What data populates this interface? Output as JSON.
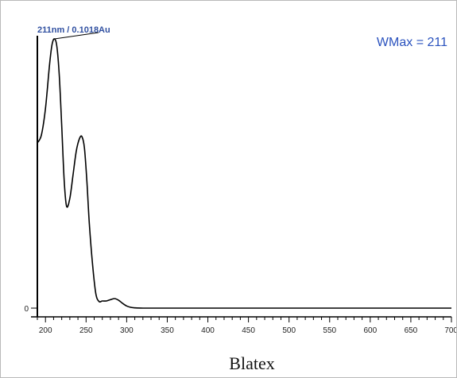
{
  "chart_data": {
    "type": "line",
    "title": "",
    "xlabel": "Blatex",
    "ylabel": "",
    "xlim": [
      190,
      700
    ],
    "ylim": [
      0,
      0.1018
    ],
    "x_ticks": [
      "200",
      "250",
      "300",
      "350",
      "400",
      "450",
      "500",
      "550",
      "600",
      "650",
      "700"
    ],
    "y_ticks": [
      "0"
    ],
    "series": [
      {
        "x": [
          190,
          195,
          200,
          205,
          208,
          211,
          214,
          217,
          220,
          223,
          226,
          230,
          234,
          238,
          242,
          245,
          248,
          251,
          254,
          258,
          262,
          266,
          270,
          275,
          280,
          285,
          290,
          295,
          300,
          305,
          310,
          320,
          350,
          400,
          450,
          500,
          550,
          600,
          650,
          700
        ],
        "y": [
          0.0625,
          0.0655,
          0.0755,
          0.092,
          0.0995,
          0.1018,
          0.099,
          0.088,
          0.069,
          0.0485,
          0.0385,
          0.0415,
          0.0505,
          0.0595,
          0.0642,
          0.0648,
          0.0605,
          0.048,
          0.032,
          0.0165,
          0.0055,
          0.0025,
          0.0027,
          0.0027,
          0.0032,
          0.0036,
          0.003,
          0.0018,
          0.0008,
          0.0003,
          0.0001,
          0,
          0,
          0,
          0,
          0,
          0,
          0,
          0,
          0
        ]
      }
    ],
    "annotations": {
      "peak": "211nm / 0.1018Au",
      "wmax": "WMax = 211"
    },
    "grid": false,
    "line_color": "#000000",
    "annotation_color": "#2a52be"
  }
}
